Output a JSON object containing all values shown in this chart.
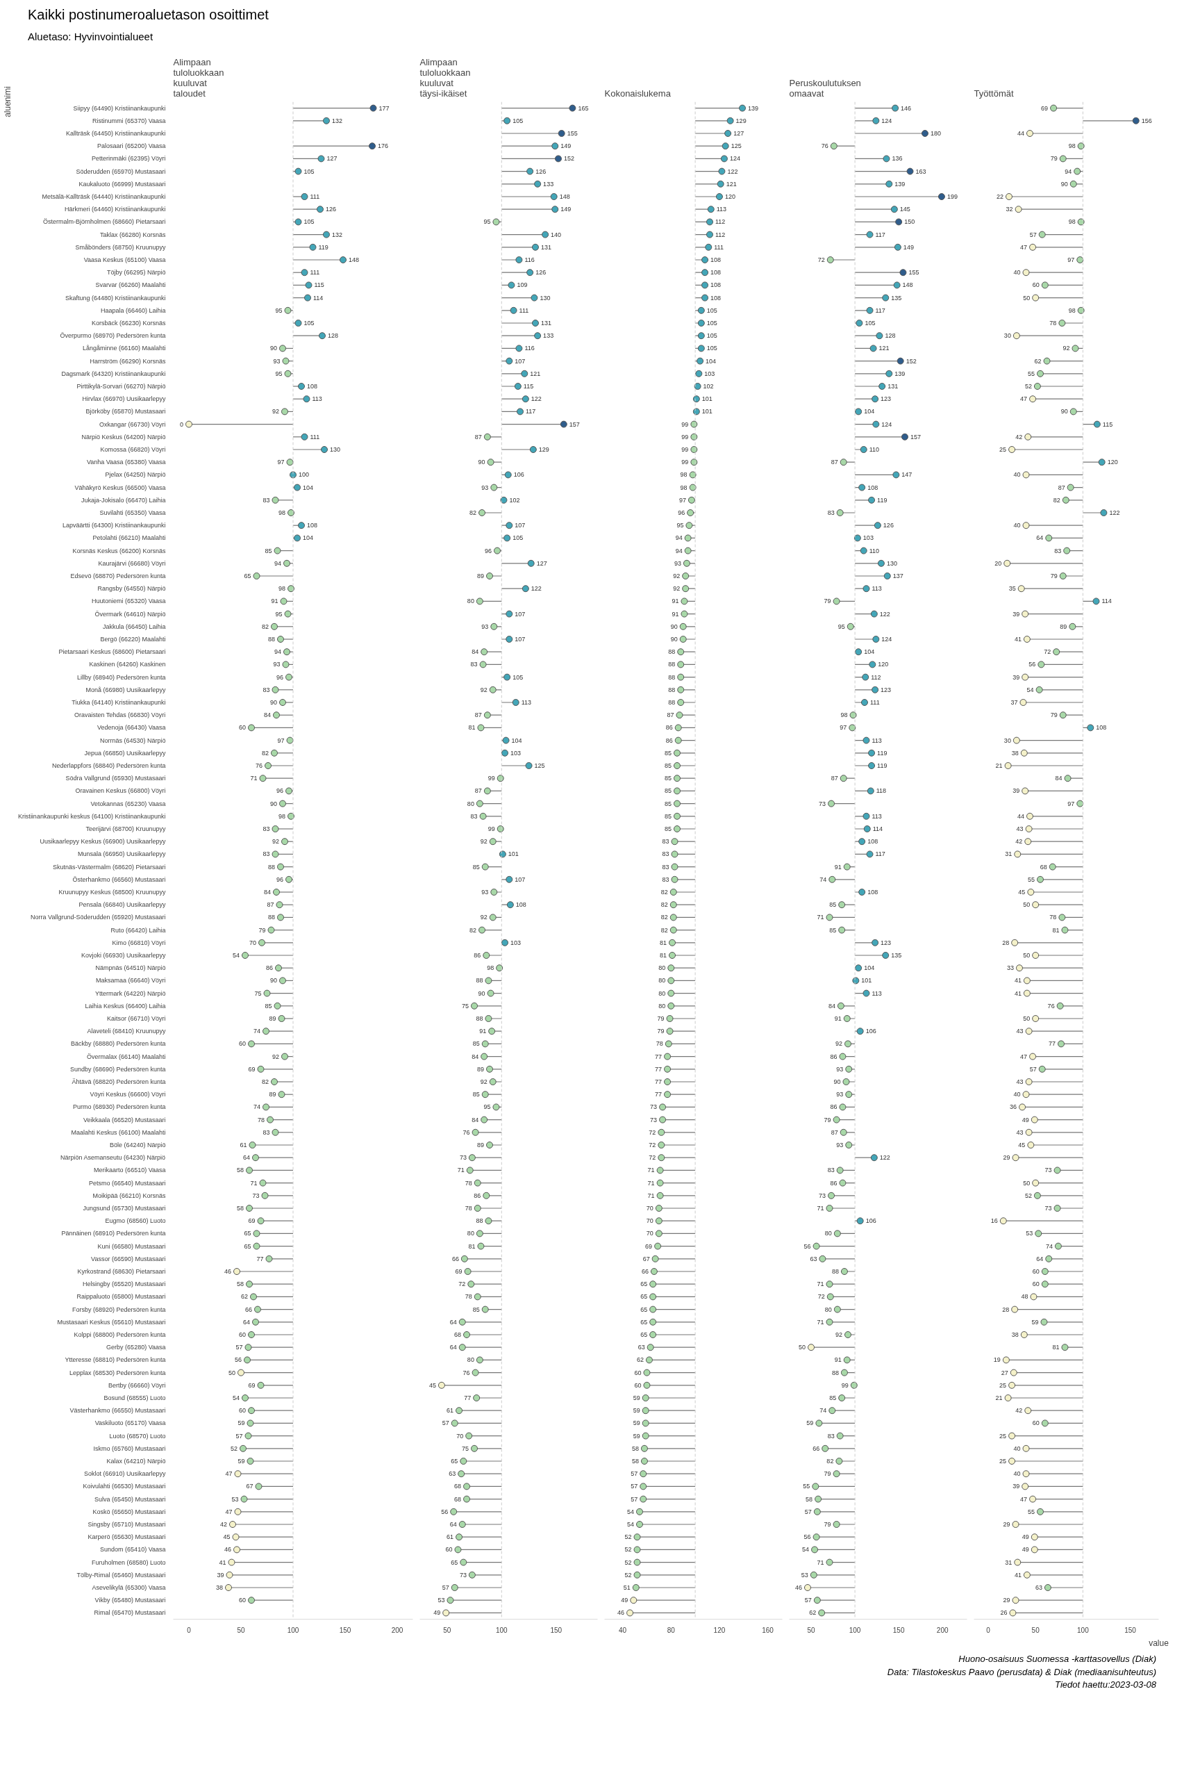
{
  "chart_data": [
    {
      "type": "lollipop",
      "orientation": "horizontal",
      "marker": "circle",
      "data_labels": true,
      "title": "Alimpaan\ntuloluokkaan\nkuuluvat\ntaloudet",
      "ylabel": "aluenimi",
      "annotations": [
        "Kaikki postinumeroaluetason osoittimet",
        "Aluetaso: Hyvinvointialueet"
      ],
      "xlim": [
        -15,
        215
      ],
      "xticks": [
        0,
        50,
        100,
        150,
        200
      ],
      "ref_lines": [
        {
          "axis": "x",
          "value": 100,
          "color": "#cccccc",
          "line_style": "dashed"
        }
      ],
      "categories": [
        "Siipyy (64490) Kristiinankaupunki",
        "Ristinummi (65370) Vaasa",
        "Kallträsk (64450) Kristiinankaupunki",
        "Palosaari (65200) Vaasa",
        "Petterinmäki (62395) Vöyri",
        "Söderudden (65970) Mustasaari",
        "Kaukaluoto (66999) Mustasaari",
        "Metsälä-Kallträsk (64440) Kristiinankaupunki",
        "Härkmeri (64460) Kristiinankaupunki",
        "Östermalm-Björnholmen (68660) Pietarsaari",
        "Taklax (66280) Korsnäs",
        "Småbönders (68750) Kruunupyy",
        "Vaasa Keskus (65100) Vaasa",
        "Töjby (66295) Närpiö",
        "Svarvar (66260) Maalahti",
        "Skaftung (64480) Kristiinankaupunki",
        "Haapala (66460) Laihia",
        "Korsbäck (66230) Korsnäs",
        "Överpurmo (68970) Pedersören kunta",
        "Långåminne (66160) Maalahti",
        "Harrström (66290) Korsnäs",
        "Dagsmark (64320) Kristiinankaupunki",
        "Pirttikylä-Sorvari (66270) Närpiö",
        "Hirvlax (66970) Uusikaarlepyy",
        "Björköby (65870) Mustasaari",
        "Oxkangar (66730) Vöyri",
        "Närpiö Keskus (64200) Närpiö",
        "Komossa (66820) Vöyri",
        "Vanha Vaasa (65380) Vaasa",
        "Pjelax (64250) Närpiö",
        "Vähäkyrö Keskus (66500) Vaasa",
        "Jukaja-Jokisalo (66470) Laihia",
        "Suvilahti (65350) Vaasa",
        "Lapväärtti (64300) Kristiinankaupunki",
        "Petolahti (66210) Maalahti",
        "Korsnäs Keskus (66200) Korsnäs",
        "Kaurajärvi (66680) Vöyri",
        "Edsevö (68870) Pedersören kunta",
        "Rangsby (64550) Närpiö",
        "Huutoniemi (65320) Vaasa",
        "Övermark (64610) Närpiö",
        "Jakkula (66450) Laihia",
        "Bergö (66220) Maalahti",
        "Pietarsaari Keskus (68600) Pietarsaari",
        "Kaskinen (64260) Kaskinen",
        "Lillby (68940) Pedersören kunta",
        "Monå (66980) Uusikaarlepyy",
        "Tiukka (64140) Kristiinankaupunki",
        "Oravaisten Tehdas (66830) Vöyri",
        "Vedenoja (66430) Vaasa",
        "Norrnäs (64530) Närpiö",
        "Jepua (66850) Uusikaarlepyy",
        "Nederlappfors (68840) Pedersören kunta",
        "Södra Vallgrund (65930) Mustasaari",
        "Oravainen Keskus (66800) Vöyri",
        "Vetokannas (65230) Vaasa",
        "Kristiinankaupunki keskus (64100) Kristiinankaupunki",
        "Teerijärvi (68700) Kruunupyy",
        "Uusikaarlepyy Keskus (66900) Uusikaarlepyy",
        "Munsala (66950) Uusikaarlepyy",
        "Skutnäs-Västermalm (68620) Pietarsaari",
        "Österhankmo (66560) Mustasaari",
        "Kruunupyy Keskus (68500) Kruunupyy",
        "Pensala (66840) Uusikaarlepyy",
        "Norra Vallgrund-Söderudden (65920) Mustasaari",
        "Ruto (66420) Laihia",
        "Kimo (66810) Vöyri",
        "Kovjoki (66930) Uusikaarlepyy",
        "Nämpnäs (64510) Närpiö",
        "Maksamaa (66640) Vöyri",
        "Yttermark (64220) Närpiö",
        "Laihia Keskus (66400) Laihia",
        "Kaitsor (66710) Vöyri",
        "Alaveteli (68410) Kruunupyy",
        "Bäckby (68880) Pedersören kunta",
        "Övermalax (66140) Maalahti",
        "Sundby (68690) Pedersören kunta",
        "Ähtävä (68820) Pedersören kunta",
        "Vöyri Keskus (66600) Vöyri",
        "Purmo (68930) Pedersören kunta",
        "Veikkaala (66520) Mustasaari",
        "Maalahti Keskus (66100) Maalahti",
        "Böle (64240) Närpiö",
        "Närpiön Asemanseutu (64230) Närpiö",
        "Merikaarto (66510) Vaasa",
        "Petsmo (66540) Mustasaari",
        "Moikipää (66210) Korsnäs",
        "Jungsund (65730) Mustasaari",
        "Eugmo (68560) Luoto",
        "Pännäinen (68910) Pedersören kunta",
        "Kuni (66580) Mustasaari",
        "Vassor (66590) Mustasaari",
        "Kyrkostrand (68630) Pietarsaari",
        "Helsingby (65520) Mustasaari",
        "Raippaluoto (65800) Mustasaari",
        "Forsby (68920) Pedersören kunta",
        "Mustasaari Keskus (65610) Mustasaari",
        "Kolppi (68800) Pedersören kunta",
        "Gerby (65280) Vaasa",
        "Ytteresse (68810) Pedersören kunta",
        "Lepplax (68530) Pedersören kunta",
        "Bertby (66660) Vöyri",
        "Bosund (68555) Luoto",
        "Västerhankmo (66550) Mustasaari",
        "Vaskiluoto (65170) Vaasa",
        "Luoto (68570) Luoto",
        "Iskmo (65760) Mustasaari",
        "Kalax (64210) Närpiö",
        "Soklot (66910) Uusikaarlepyy",
        "Koivulahti (66530) Mustasaari",
        "Sulva (65450) Mustasaari",
        "Koskö (65650) Mustasaari",
        "Singsby (65710) Mustasaari",
        "Karperö (65630) Mustasaari",
        "Sundom (65410) Vaasa",
        "Furuholmen (68580) Luoto",
        "Tölby-Rimal (65460) Mustasaari",
        "Asevelikylä (65300) Vaasa",
        "Vikby (65480) Mustasaari",
        "Rimal (65470) Mustasaari"
      ],
      "values": [
        177,
        132,
        null,
        176,
        127,
        105,
        null,
        111,
        126,
        105,
        132,
        119,
        148,
        111,
        115,
        114,
        95,
        105,
        128,
        90,
        93,
        95,
        108,
        113,
        92,
        0,
        111,
        130,
        97,
        100,
        104,
        83,
        98,
        108,
        104,
        85,
        94,
        65,
        98,
        91,
        95,
        82,
        88,
        94,
        93,
        96,
        83,
        90,
        84,
        60,
        97,
        82,
        76,
        71,
        96,
        90,
        98,
        83,
        92,
        83,
        88,
        96,
        84,
        87,
        88,
        79,
        70,
        54,
        86,
        90,
        75,
        85,
        89,
        74,
        60,
        92,
        69,
        82,
        89,
        74,
        78,
        83,
        61,
        64,
        58,
        71,
        73,
        58,
        69,
        65,
        65,
        77,
        46,
        58,
        62,
        66,
        64,
        60,
        57,
        56,
        50,
        69,
        54,
        60,
        59,
        57,
        52,
        59,
        47,
        67,
        53,
        47,
        42,
        45,
        46,
        41,
        39,
        38,
        60,
        null
      ],
      "colors": [
        "#2f5d8c",
        "#43a6b8",
        null,
        "#2f5d8c",
        "#43a6b8",
        "#43a6b8",
        null,
        "#43a6b8",
        "#43a6b8",
        "#43a6b8",
        "#43a6b8",
        "#43a6b8",
        "#43a6b8",
        "#43a6b8",
        "#43a6b8",
        "#43a6b8",
        "#a8d8a8",
        "#43a6b8",
        "#43a6b8",
        "#a8d8a8",
        "#a8d8a8",
        "#a8d8a8",
        "#43a6b8",
        "#43a6b8",
        "#a8d8a8",
        "#f4f1c9",
        "#43a6b8",
        "#43a6b8",
        "#a8d8a8",
        "#43a6b8",
        "#43a6b8",
        "#a8d8a8",
        "#a8d8a8",
        "#43a6b8",
        "#43a6b8",
        "#a8d8a8",
        "#a8d8a8",
        "#a8d8a8",
        "#a8d8a8",
        "#a8d8a8",
        "#a8d8a8",
        "#a8d8a8",
        "#a8d8a8",
        "#a8d8a8",
        "#a8d8a8",
        "#a8d8a8",
        "#a8d8a8",
        "#a8d8a8",
        "#a8d8a8",
        "#a8d8a8",
        "#a8d8a8",
        "#a8d8a8",
        "#a8d8a8",
        "#a8d8a8",
        "#a8d8a8",
        "#a8d8a8",
        "#a8d8a8",
        "#a8d8a8",
        "#a8d8a8",
        "#a8d8a8",
        "#a8d8a8",
        "#a8d8a8",
        "#a8d8a8",
        "#a8d8a8",
        "#a8d8a8",
        "#a8d8a8",
        "#a8d8a8",
        "#a8d8a8",
        "#a8d8a8",
        "#a8d8a8",
        "#a8d8a8",
        "#a8d8a8",
        "#a8d8a8",
        "#a8d8a8",
        "#a8d8a8",
        "#a8d8a8",
        "#a8d8a8",
        "#a8d8a8",
        "#a8d8a8",
        "#a8d8a8",
        "#a8d8a8",
        "#a8d8a8",
        "#a8d8a8",
        "#a8d8a8",
        "#a8d8a8",
        "#a8d8a8",
        "#a8d8a8",
        "#a8d8a8",
        "#a8d8a8",
        "#a8d8a8",
        "#a8d8a8",
        "#a8d8a8",
        "#f4f1c9",
        "#a8d8a8",
        "#a8d8a8",
        "#a8d8a8",
        "#a8d8a8",
        "#a8d8a8",
        "#a8d8a8",
        "#a8d8a8",
        "#f4f1c9",
        "#a8d8a8",
        "#a8d8a8",
        "#a8d8a8",
        "#a8d8a8",
        "#a8d8a8",
        "#a8d8a8",
        "#a8d8a8",
        "#f4f1c9",
        "#a8d8a8",
        "#a8d8a8",
        "#f4f1c9",
        "#f4f1c9",
        "#f4f1c9",
        "#f4f1c9",
        "#f4f1c9",
        "#f4f1c9",
        "#f4f1c9",
        "#a8d8a8",
        null
      ]
    },
    {
      "type": "lollipop",
      "orientation": "horizontal",
      "marker": "circle",
      "data_labels": true,
      "title": "Alimpaan\ntuloluokkaan\nkuuluvat\ntäysi-ikäiset",
      "xlim": [
        25,
        188
      ],
      "xticks": [
        50,
        100,
        150
      ],
      "ref_lines": [
        {
          "axis": "x",
          "value": 100,
          "color": "#cccccc",
          "line_style": "dashed"
        }
      ],
      "categories": [
        null,
        null,
        null,
        null,
        null,
        null,
        null,
        null,
        null,
        null,
        null,
        null,
        null,
        null,
        null,
        null,
        null,
        null,
        null,
        null,
        null,
        null,
        null,
        null,
        null,
        null,
        null,
        null,
        null,
        null,
        null,
        null,
        null,
        null,
        null,
        null,
        null,
        null,
        null,
        null,
        null,
        null,
        null,
        null,
        null,
        null,
        null,
        null,
        null,
        null,
        null,
        null,
        null,
        null,
        null,
        null,
        null,
        null,
        null,
        null,
        null,
        null,
        null,
        null,
        null,
        null,
        null,
        null,
        null,
        null,
        null,
        null,
        null,
        null,
        null,
        null,
        null,
        null,
        null,
        null,
        null,
        null,
        null,
        null,
        null,
        null,
        null,
        null,
        null,
        null,
        null,
        null,
        null,
        null,
        null,
        null,
        null,
        null,
        null,
        null,
        null,
        null,
        null,
        null,
        null,
        null,
        null,
        null,
        null,
        null,
        null,
        null,
        null,
        null,
        null,
        null,
        null,
        null,
        null,
        null
      ],
      "values": [
        165,
        105,
        155,
        149,
        152,
        126,
        133,
        148,
        149,
        95,
        140,
        131,
        116,
        126,
        109,
        130,
        111,
        131,
        133,
        116,
        107,
        121,
        115,
        122,
        117,
        157,
        87,
        129,
        90,
        106,
        93,
        102,
        82,
        107,
        105,
        96,
        127,
        89,
        122,
        80,
        107,
        93,
        107,
        84,
        83,
        105,
        92,
        113,
        87,
        81,
        104,
        103,
        125,
        99,
        87,
        80,
        83,
        99,
        92,
        101,
        85,
        107,
        93,
        108,
        92,
        82,
        103,
        86,
        98,
        88,
        90,
        75,
        88,
        91,
        85,
        84,
        89,
        92,
        85,
        95,
        84,
        76,
        89,
        73,
        71,
        78,
        86,
        78,
        88,
        80,
        81,
        66,
        69,
        72,
        78,
        85,
        64,
        68,
        64,
        80,
        76,
        45,
        77,
        61,
        57,
        70,
        75,
        65,
        63,
        68,
        68,
        56,
        64,
        61,
        60,
        65,
        73,
        57,
        53,
        49
      ],
      "colors": [
        "#2f5d8c",
        "#43a6b8",
        "#2f5d8c",
        "#43a6b8",
        "#2f5d8c",
        "#43a6b8",
        "#43a6b8",
        "#43a6b8",
        "#43a6b8",
        "#a8d8a8",
        "#43a6b8",
        "#43a6b8",
        "#43a6b8",
        "#43a6b8",
        "#43a6b8",
        "#43a6b8",
        "#43a6b8",
        "#43a6b8",
        "#43a6b8",
        "#43a6b8",
        "#43a6b8",
        "#43a6b8",
        "#43a6b8",
        "#43a6b8",
        "#43a6b8",
        "#2f5d8c",
        "#a8d8a8",
        "#43a6b8",
        "#a8d8a8",
        "#43a6b8",
        "#a8d8a8",
        "#43a6b8",
        "#a8d8a8",
        "#43a6b8",
        "#43a6b8",
        "#a8d8a8",
        "#43a6b8",
        "#a8d8a8",
        "#43a6b8",
        "#a8d8a8",
        "#43a6b8",
        "#a8d8a8",
        "#43a6b8",
        "#a8d8a8",
        "#a8d8a8",
        "#43a6b8",
        "#a8d8a8",
        "#43a6b8",
        "#a8d8a8",
        "#a8d8a8",
        "#43a6b8",
        "#43a6b8",
        "#43a6b8",
        "#a8d8a8",
        "#a8d8a8",
        "#a8d8a8",
        "#a8d8a8",
        "#a8d8a8",
        "#a8d8a8",
        "#43a6b8",
        "#a8d8a8",
        "#43a6b8",
        "#a8d8a8",
        "#43a6b8",
        "#a8d8a8",
        "#a8d8a8",
        "#43a6b8",
        "#a8d8a8",
        "#a8d8a8",
        "#a8d8a8",
        "#a8d8a8",
        "#a8d8a8",
        "#a8d8a8",
        "#a8d8a8",
        "#a8d8a8",
        "#a8d8a8",
        "#a8d8a8",
        "#a8d8a8",
        "#a8d8a8",
        "#a8d8a8",
        "#a8d8a8",
        "#a8d8a8",
        "#a8d8a8",
        "#a8d8a8",
        "#a8d8a8",
        "#a8d8a8",
        "#a8d8a8",
        "#a8d8a8",
        "#a8d8a8",
        "#a8d8a8",
        "#a8d8a8",
        "#a8d8a8",
        "#a8d8a8",
        "#a8d8a8",
        "#a8d8a8",
        "#a8d8a8",
        "#a8d8a8",
        "#a8d8a8",
        "#a8d8a8",
        "#a8d8a8",
        "#a8d8a8",
        "#f4f1c9",
        "#a8d8a8",
        "#a8d8a8",
        "#a8d8a8",
        "#a8d8a8",
        "#a8d8a8",
        "#a8d8a8",
        "#a8d8a8",
        "#a8d8a8",
        "#a8d8a8",
        "#a8d8a8",
        "#a8d8a8",
        "#a8d8a8",
        "#a8d8a8",
        "#a8d8a8",
        "#a8d8a8",
        "#a8d8a8",
        "#a8d8a8",
        "#f4f1c9"
      ]
    },
    {
      "type": "lollipop",
      "orientation": "horizontal",
      "marker": "circle",
      "data_labels": true,
      "title": "Kokonaislukema",
      "xlim": [
        25,
        172
      ],
      "xticks": [
        40,
        80,
        120,
        160
      ],
      "ref_lines": [
        {
          "axis": "x",
          "value": 100,
          "color": "#cccccc",
          "line_style": "dashed"
        }
      ],
      "categories": [
        null,
        null,
        null,
        null,
        null,
        null,
        null,
        null,
        null,
        null,
        null,
        null,
        null,
        null,
        null,
        null,
        null,
        null,
        null,
        null,
        null,
        null,
        null,
        null,
        null,
        null,
        null,
        null,
        null,
        null,
        null,
        null,
        null,
        null,
        null,
        null,
        null,
        null,
        null,
        null,
        null,
        null,
        null,
        null,
        null,
        null,
        null,
        null,
        null,
        null,
        null,
        null,
        null,
        null,
        null,
        null,
        null,
        null,
        null,
        null,
        null,
        null,
        null,
        null,
        null,
        null,
        null,
        null,
        null,
        null,
        null,
        null,
        null,
        null,
        null,
        null,
        null,
        null,
        null,
        null,
        null,
        null,
        null,
        null,
        null,
        null,
        null,
        null,
        null,
        null,
        null,
        null,
        null,
        null,
        null,
        null,
        null,
        null,
        null,
        null,
        null,
        null,
        null,
        null,
        null,
        null,
        null,
        null,
        null,
        null,
        null,
        null,
        null,
        null,
        null,
        null,
        null,
        null,
        null,
        null
      ],
      "values": [
        139,
        129,
        127,
        125,
        124,
        122,
        121,
        120,
        113,
        112,
        112,
        111,
        108,
        108,
        108,
        108,
        105,
        105,
        105,
        105,
        104,
        103,
        102,
        101,
        101,
        99,
        99,
        99,
        99,
        98,
        98,
        97,
        96,
        95,
        94,
        94,
        93,
        92,
        92,
        91,
        91,
        90,
        90,
        88,
        88,
        88,
        88,
        88,
        87,
        86,
        86,
        85,
        85,
        85,
        85,
        85,
        85,
        85,
        83,
        83,
        83,
        83,
        82,
        82,
        82,
        82,
        81,
        81,
        80,
        80,
        80,
        80,
        79,
        79,
        78,
        77,
        77,
        77,
        77,
        73,
        73,
        72,
        72,
        72,
        71,
        71,
        71,
        70,
        70,
        70,
        69,
        67,
        66,
        65,
        65,
        65,
        65,
        65,
        63,
        62,
        60,
        60,
        59,
        59,
        59,
        59,
        58,
        58,
        57,
        57,
        57,
        54,
        54,
        52,
        52,
        52,
        52,
        51,
        49,
        46
      ],
      "colors": [
        "#43a6b8",
        "#43a6b8",
        "#43a6b8",
        "#43a6b8",
        "#43a6b8",
        "#43a6b8",
        "#43a6b8",
        "#43a6b8",
        "#43a6b8",
        "#43a6b8",
        "#43a6b8",
        "#43a6b8",
        "#43a6b8",
        "#43a6b8",
        "#43a6b8",
        "#43a6b8",
        "#43a6b8",
        "#43a6b8",
        "#43a6b8",
        "#43a6b8",
        "#43a6b8",
        "#43a6b8",
        "#43a6b8",
        "#43a6b8",
        "#43a6b8",
        "#a8d8a8",
        "#a8d8a8",
        "#a8d8a8",
        "#a8d8a8",
        "#a8d8a8",
        "#a8d8a8",
        "#a8d8a8",
        "#a8d8a8",
        "#a8d8a8",
        "#a8d8a8",
        "#a8d8a8",
        "#a8d8a8",
        "#a8d8a8",
        "#a8d8a8",
        "#a8d8a8",
        "#a8d8a8",
        "#a8d8a8",
        "#a8d8a8",
        "#a8d8a8",
        "#a8d8a8",
        "#a8d8a8",
        "#a8d8a8",
        "#a8d8a8",
        "#a8d8a8",
        "#a8d8a8",
        "#a8d8a8",
        "#a8d8a8",
        "#a8d8a8",
        "#a8d8a8",
        "#a8d8a8",
        "#a8d8a8",
        "#a8d8a8",
        "#a8d8a8",
        "#a8d8a8",
        "#a8d8a8",
        "#a8d8a8",
        "#a8d8a8",
        "#a8d8a8",
        "#a8d8a8",
        "#a8d8a8",
        "#a8d8a8",
        "#a8d8a8",
        "#a8d8a8",
        "#a8d8a8",
        "#a8d8a8",
        "#a8d8a8",
        "#a8d8a8",
        "#a8d8a8",
        "#a8d8a8",
        "#a8d8a8",
        "#a8d8a8",
        "#a8d8a8",
        "#a8d8a8",
        "#a8d8a8",
        "#a8d8a8",
        "#a8d8a8",
        "#a8d8a8",
        "#a8d8a8",
        "#a8d8a8",
        "#a8d8a8",
        "#a8d8a8",
        "#a8d8a8",
        "#a8d8a8",
        "#a8d8a8",
        "#a8d8a8",
        "#a8d8a8",
        "#a8d8a8",
        "#a8d8a8",
        "#a8d8a8",
        "#a8d8a8",
        "#a8d8a8",
        "#a8d8a8",
        "#a8d8a8",
        "#a8d8a8",
        "#a8d8a8",
        "#a8d8a8",
        "#a8d8a8",
        "#a8d8a8",
        "#a8d8a8",
        "#a8d8a8",
        "#a8d8a8",
        "#a8d8a8",
        "#a8d8a8",
        "#a8d8a8",
        "#a8d8a8",
        "#a8d8a8",
        "#a8d8a8",
        "#a8d8a8",
        "#a8d8a8",
        "#a8d8a8",
        "#a8d8a8",
        "#a8d8a8",
        "#a8d8a8",
        "#f4f1c9",
        "#f4f1c9"
      ]
    },
    {
      "type": "lollipop",
      "orientation": "horizontal",
      "marker": "circle",
      "data_labels": true,
      "title": "Peruskoulutuksen\nomaavat",
      "xlim": [
        25,
        228
      ],
      "xticks": [
        50,
        100,
        150,
        200
      ],
      "ref_lines": [
        {
          "axis": "x",
          "value": 100,
          "color": "#cccccc",
          "line_style": "dashed"
        }
      ],
      "categories": [
        null,
        null,
        null,
        null,
        null,
        null,
        null,
        null,
        null,
        null,
        null,
        null,
        null,
        null,
        null,
        null,
        null,
        null,
        null,
        null,
        null,
        null,
        null,
        null,
        null,
        null,
        null,
        null,
        null,
        null,
        null,
        null,
        null,
        null,
        null,
        null,
        null,
        null,
        null,
        null,
        null,
        null,
        null,
        null,
        null,
        null,
        null,
        null,
        null,
        null,
        null,
        null,
        null,
        null,
        null,
        null,
        null,
        null,
        null,
        null,
        null,
        null,
        null,
        null,
        null,
        null,
        null,
        null,
        null,
        null,
        null,
        null,
        null,
        null,
        null,
        null,
        null,
        null,
        null,
        null,
        null,
        null,
        null,
        null,
        null,
        null,
        null,
        null,
        null,
        null,
        null,
        null,
        null,
        null,
        null,
        null,
        null,
        null,
        null,
        null,
        null,
        null,
        null,
        null,
        null,
        null,
        null,
        null,
        null,
        null,
        null,
        null,
        null,
        null,
        null,
        null,
        null,
        null,
        null,
        null
      ],
      "values": [
        146,
        124,
        180,
        76,
        136,
        163,
        139,
        199,
        145,
        150,
        117,
        149,
        72,
        155,
        148,
        135,
        117,
        105,
        128,
        121,
        152,
        139,
        131,
        123,
        104,
        124,
        157,
        110,
        87,
        147,
        108,
        119,
        83,
        126,
        103,
        110,
        130,
        137,
        113,
        79,
        122,
        95,
        124,
        104,
        120,
        112,
        123,
        111,
        98,
        97,
        113,
        119,
        119,
        87,
        118,
        73,
        113,
        114,
        108,
        117,
        91,
        74,
        108,
        85,
        71,
        85,
        123,
        135,
        104,
        101,
        113,
        84,
        91,
        106,
        92,
        86,
        93,
        90,
        93,
        86,
        79,
        87,
        93,
        122,
        83,
        86,
        73,
        71,
        106,
        80,
        56,
        63,
        88,
        71,
        72,
        80,
        71,
        92,
        50,
        91,
        88,
        99,
        85,
        74,
        59,
        83,
        66,
        82,
        79,
        55,
        58,
        57,
        79,
        56,
        54,
        71,
        53,
        46,
        57,
        62
      ],
      "colors": [
        "#43a6b8",
        "#43a6b8",
        "#2f5d8c",
        "#a8d8a8",
        "#43a6b8",
        "#2f5d8c",
        "#43a6b8",
        "#2f5d8c",
        "#43a6b8",
        "#2f5d8c",
        "#43a6b8",
        "#43a6b8",
        "#a8d8a8",
        "#2f5d8c",
        "#43a6b8",
        "#43a6b8",
        "#43a6b8",
        "#43a6b8",
        "#43a6b8",
        "#43a6b8",
        "#2f5d8c",
        "#43a6b8",
        "#43a6b8",
        "#43a6b8",
        "#43a6b8",
        "#43a6b8",
        "#2f5d8c",
        "#43a6b8",
        "#a8d8a8",
        "#43a6b8",
        "#43a6b8",
        "#43a6b8",
        "#a8d8a8",
        "#43a6b8",
        "#43a6b8",
        "#43a6b8",
        "#43a6b8",
        "#43a6b8",
        "#43a6b8",
        "#a8d8a8",
        "#43a6b8",
        "#a8d8a8",
        "#43a6b8",
        "#43a6b8",
        "#43a6b8",
        "#43a6b8",
        "#43a6b8",
        "#43a6b8",
        "#a8d8a8",
        "#a8d8a8",
        "#43a6b8",
        "#43a6b8",
        "#43a6b8",
        "#a8d8a8",
        "#43a6b8",
        "#a8d8a8",
        "#43a6b8",
        "#43a6b8",
        "#43a6b8",
        "#43a6b8",
        "#a8d8a8",
        "#a8d8a8",
        "#43a6b8",
        "#a8d8a8",
        "#a8d8a8",
        "#a8d8a8",
        "#43a6b8",
        "#43a6b8",
        "#43a6b8",
        "#43a6b8",
        "#43a6b8",
        "#a8d8a8",
        "#a8d8a8",
        "#43a6b8",
        "#a8d8a8",
        "#a8d8a8",
        "#a8d8a8",
        "#a8d8a8",
        "#a8d8a8",
        "#a8d8a8",
        "#a8d8a8",
        "#a8d8a8",
        "#a8d8a8",
        "#43a6b8",
        "#a8d8a8",
        "#a8d8a8",
        "#a8d8a8",
        "#a8d8a8",
        "#43a6b8",
        "#a8d8a8",
        "#a8d8a8",
        "#a8d8a8",
        "#a8d8a8",
        "#a8d8a8",
        "#a8d8a8",
        "#a8d8a8",
        "#a8d8a8",
        "#a8d8a8",
        "#f4f1c9",
        "#a8d8a8",
        "#a8d8a8",
        "#a8d8a8",
        "#a8d8a8",
        "#a8d8a8",
        "#a8d8a8",
        "#a8d8a8",
        "#a8d8a8",
        "#a8d8a8",
        "#a8d8a8",
        "#a8d8a8",
        "#a8d8a8",
        "#a8d8a8",
        "#a8d8a8",
        "#a8d8a8",
        "#a8d8a8",
        "#a8d8a8",
        "#a8d8a8",
        "#f4f1c9",
        "#a8d8a8",
        "#a8d8a8"
      ]
    },
    {
      "type": "lollipop",
      "orientation": "horizontal",
      "marker": "circle",
      "data_labels": true,
      "title": "Työttömät",
      "xlabel": "value",
      "annotations": [
        "Huono-osaisuus Suomessa -karttasovellus (Diak)",
        "Data: Tilastokeskus Paavo (perusdata) & Diak (mediaanisuhteutus)",
        "Tiedot haettu:2023-03-08"
      ],
      "xlim": [
        -15,
        180
      ],
      "xticks": [
        0,
        50,
        100,
        150
      ],
      "ref_lines": [
        {
          "axis": "x",
          "value": 100,
          "color": "#cccccc",
          "line_style": "dashed"
        }
      ],
      "categories": [
        null,
        null,
        null,
        null,
        null,
        null,
        null,
        null,
        null,
        null,
        null,
        null,
        null,
        null,
        null,
        null,
        null,
        null,
        null,
        null,
        null,
        null,
        null,
        null,
        null,
        null,
        null,
        null,
        null,
        null,
        null,
        null,
        null,
        null,
        null,
        null,
        null,
        null,
        null,
        null,
        null,
        null,
        null,
        null,
        null,
        null,
        null,
        null,
        null,
        null,
        null,
        null,
        null,
        null,
        null,
        null,
        null,
        null,
        null,
        null,
        null,
        null,
        null,
        null,
        null,
        null,
        null,
        null,
        null,
        null,
        null,
        null,
        null,
        null,
        null,
        null,
        null,
        null,
        null,
        null,
        null,
        null,
        null,
        null,
        null,
        null,
        null,
        null,
        null,
        null,
        null,
        null,
        null,
        null,
        null,
        null,
        null,
        null,
        null,
        null,
        null,
        null,
        null,
        null,
        null,
        null,
        null,
        null,
        null,
        null,
        null,
        null,
        null,
        null,
        null,
        null,
        null,
        null,
        null,
        null
      ],
      "values": [
        69,
        156,
        44,
        98,
        79,
        94,
        90,
        22,
        32,
        98,
        57,
        47,
        97,
        40,
        60,
        50,
        98,
        78,
        30,
        92,
        62,
        55,
        52,
        47,
        90,
        115,
        42,
        25,
        120,
        40,
        87,
        82,
        122,
        40,
        64,
        83,
        20,
        79,
        35,
        114,
        39,
        89,
        41,
        72,
        56,
        39,
        54,
        37,
        79,
        108,
        30,
        38,
        21,
        84,
        39,
        97,
        44,
        43,
        42,
        31,
        68,
        55,
        45,
        50,
        78,
        81,
        28,
        50,
        33,
        41,
        41,
        76,
        50,
        43,
        77,
        47,
        57,
        43,
        40,
        36,
        49,
        43,
        45,
        29,
        73,
        50,
        52,
        73,
        16,
        53,
        74,
        64,
        60,
        60,
        48,
        28,
        59,
        38,
        81,
        19,
        27,
        25,
        21,
        42,
        60,
        25,
        40,
        25,
        40,
        39,
        47,
        55,
        29,
        49,
        49,
        31,
        41,
        63,
        29,
        26
      ],
      "colors": [
        "#a8d8a8",
        "#2f5d8c",
        "#f4f1c9",
        "#a8d8a8",
        "#a8d8a8",
        "#a8d8a8",
        "#a8d8a8",
        "#f4f1c9",
        "#f4f1c9",
        "#a8d8a8",
        "#a8d8a8",
        "#f4f1c9",
        "#a8d8a8",
        "#f4f1c9",
        "#a8d8a8",
        "#f4f1c9",
        "#a8d8a8",
        "#a8d8a8",
        "#f4f1c9",
        "#a8d8a8",
        "#a8d8a8",
        "#a8d8a8",
        "#a8d8a8",
        "#f4f1c9",
        "#a8d8a8",
        "#43a6b8",
        "#f4f1c9",
        "#f4f1c9",
        "#43a6b8",
        "#f4f1c9",
        "#a8d8a8",
        "#a8d8a8",
        "#43a6b8",
        "#f4f1c9",
        "#a8d8a8",
        "#a8d8a8",
        "#f4f1c9",
        "#a8d8a8",
        "#f4f1c9",
        "#43a6b8",
        "#f4f1c9",
        "#a8d8a8",
        "#f4f1c9",
        "#a8d8a8",
        "#a8d8a8",
        "#f4f1c9",
        "#a8d8a8",
        "#f4f1c9",
        "#a8d8a8",
        "#43a6b8",
        "#f4f1c9",
        "#f4f1c9",
        "#f4f1c9",
        "#a8d8a8",
        "#f4f1c9",
        "#a8d8a8",
        "#f4f1c9",
        "#f4f1c9",
        "#f4f1c9",
        "#f4f1c9",
        "#a8d8a8",
        "#a8d8a8",
        "#f4f1c9",
        "#f4f1c9",
        "#a8d8a8",
        "#a8d8a8",
        "#f4f1c9",
        "#f4f1c9",
        "#f4f1c9",
        "#f4f1c9",
        "#f4f1c9",
        "#a8d8a8",
        "#f4f1c9",
        "#f4f1c9",
        "#a8d8a8",
        "#f4f1c9",
        "#a8d8a8",
        "#f4f1c9",
        "#f4f1c9",
        "#f4f1c9",
        "#f4f1c9",
        "#f4f1c9",
        "#f4f1c9",
        "#f4f1c9",
        "#a8d8a8",
        "#f4f1c9",
        "#a8d8a8",
        "#a8d8a8",
        "#f4f1c9",
        "#a8d8a8",
        "#a8d8a8",
        "#a8d8a8",
        "#a8d8a8",
        "#a8d8a8",
        "#f4f1c9",
        "#f4f1c9",
        "#a8d8a8",
        "#f4f1c9",
        "#a8d8a8",
        "#f4f1c9",
        "#f4f1c9",
        "#f4f1c9",
        "#f4f1c9",
        "#f4f1c9",
        "#a8d8a8",
        "#f4f1c9",
        "#f4f1c9",
        "#f4f1c9",
        "#f4f1c9",
        "#f4f1c9",
        "#f4f1c9",
        "#a8d8a8",
        "#f4f1c9",
        "#f4f1c9",
        "#f4f1c9",
        "#f4f1c9",
        "#f4f1c9",
        "#a8d8a8",
        "#f4f1c9",
        "#f4f1c9"
      ]
    }
  ]
}
